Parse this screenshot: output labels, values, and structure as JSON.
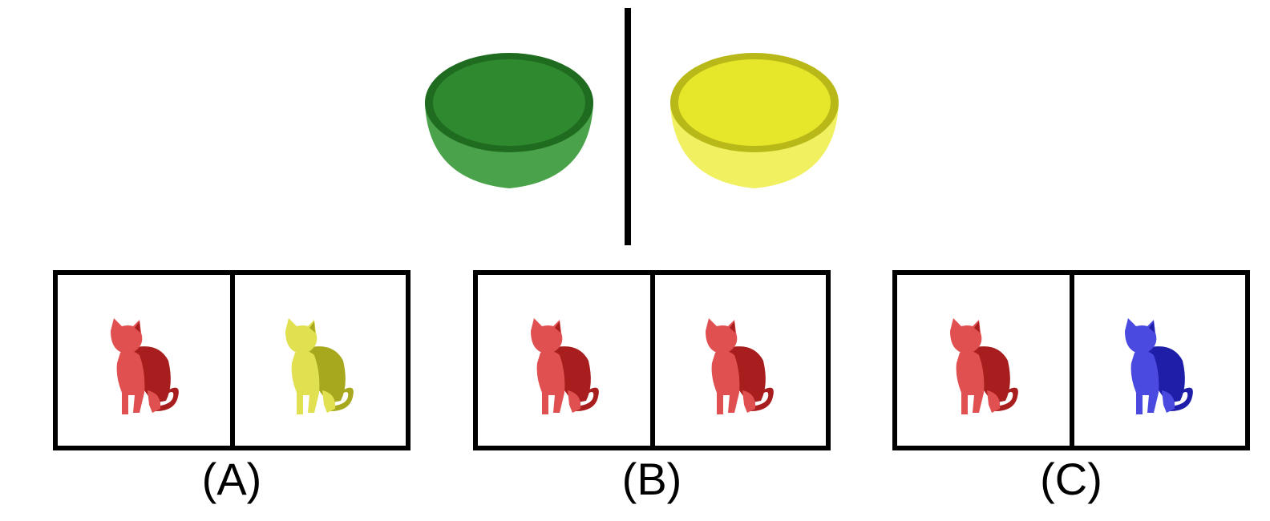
{
  "reference": {
    "left_bowl": {
      "icon": "bowl-icon",
      "color": "#2f8a2f",
      "rim": "#1f6b1f",
      "shade": "#4aa34a"
    },
    "right_bowl": {
      "icon": "bowl-icon",
      "color": "#e6e62a",
      "rim": "#b8b818",
      "shade": "#f0f060"
    }
  },
  "options": [
    {
      "label": "(A)",
      "left_cat": {
        "icon": "cat-icon",
        "color": "#e05050",
        "shade": "#a81e1e"
      },
      "right_cat": {
        "icon": "cat-icon",
        "color": "#e0e050",
        "shade": "#a8a81e"
      }
    },
    {
      "label": "(B)",
      "left_cat": {
        "icon": "cat-icon",
        "color": "#e05050",
        "shade": "#a81e1e"
      },
      "right_cat": {
        "icon": "cat-icon",
        "color": "#e05050",
        "shade": "#a81e1e"
      }
    },
    {
      "label": "(C)",
      "left_cat": {
        "icon": "cat-icon",
        "color": "#e05050",
        "shade": "#a81e1e"
      },
      "right_cat": {
        "icon": "cat-icon",
        "color": "#4a4ae0",
        "shade": "#1e1ea8"
      }
    }
  ]
}
